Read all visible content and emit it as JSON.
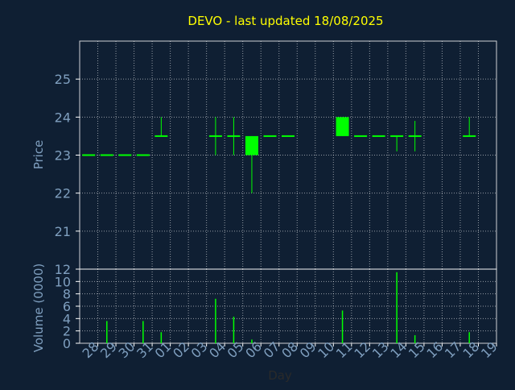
{
  "title": "DEVO - last updated 18/08/2025",
  "colors": {
    "background": "#0f1f33",
    "title": "#ffff00",
    "axis_text": "#7f9fbf",
    "frame": "#ffffff",
    "grid": "#ffffff",
    "candle": "#00ff00"
  },
  "chart_data": [
    {
      "type": "candlestick",
      "ylabel": "Price",
      "ylim": [
        20,
        26
      ],
      "yticks": [
        21,
        22,
        23,
        24,
        25
      ],
      "grid": true,
      "candles": [
        {
          "day": "28",
          "open": 23.0,
          "high": 23.0,
          "low": 23.0,
          "close": 23.0
        },
        {
          "day": "29",
          "open": 23.0,
          "high": 23.0,
          "low": 23.0,
          "close": 23.0
        },
        {
          "day": "30",
          "open": 23.0,
          "high": 23.0,
          "low": 23.0,
          "close": 23.0
        },
        {
          "day": "31",
          "open": 23.0,
          "high": 23.0,
          "low": 23.0,
          "close": 23.0
        },
        {
          "day": "01",
          "open": 23.5,
          "high": 24.0,
          "low": 23.5,
          "close": 23.5
        },
        {
          "day": "04",
          "open": 23.5,
          "high": 24.0,
          "low": 23.0,
          "close": 23.5
        },
        {
          "day": "05",
          "open": 23.5,
          "high": 24.0,
          "low": 23.0,
          "close": 23.5
        },
        {
          "day": "06",
          "open": 23.5,
          "high": 23.5,
          "low": 22.0,
          "close": 23.0
        },
        {
          "day": "07",
          "open": 23.5,
          "high": 23.5,
          "low": 23.5,
          "close": 23.5
        },
        {
          "day": "08",
          "open": 23.5,
          "high": 23.5,
          "low": 23.5,
          "close": 23.5
        },
        {
          "day": "11",
          "open": 23.5,
          "high": 24.0,
          "low": 23.5,
          "close": 24.0
        },
        {
          "day": "12",
          "open": 23.5,
          "high": 23.5,
          "low": 23.5,
          "close": 23.5
        },
        {
          "day": "13",
          "open": 23.5,
          "high": 23.5,
          "low": 23.5,
          "close": 23.5
        },
        {
          "day": "14",
          "open": 23.5,
          "high": 23.5,
          "low": 23.1,
          "close": 23.5
        },
        {
          "day": "15",
          "open": 23.5,
          "high": 23.9,
          "low": 23.1,
          "close": 23.5
        },
        {
          "day": "18",
          "open": 23.5,
          "high": 24.0,
          "low": 23.5,
          "close": 23.5
        }
      ]
    },
    {
      "type": "bar",
      "ylabel": "Volume (0000)",
      "xlabel": "Day",
      "ylim": [
        0,
        12
      ],
      "yticks": [
        0,
        2,
        4,
        6,
        8,
        10,
        12
      ],
      "grid": true,
      "categories": [
        "28",
        "29",
        "30",
        "31",
        "01",
        "02",
        "03",
        "04",
        "05",
        "06",
        "07",
        "08",
        "09",
        "10",
        "11",
        "12",
        "13",
        "14",
        "15",
        "16",
        "17",
        "18",
        "19"
      ],
      "values": [
        0,
        3.6,
        0,
        3.6,
        1.8,
        0,
        0,
        7.2,
        4.3,
        0.6,
        0,
        0,
        0,
        0,
        5.3,
        0,
        0,
        11.5,
        1.3,
        0,
        0,
        1.8,
        0
      ]
    }
  ]
}
